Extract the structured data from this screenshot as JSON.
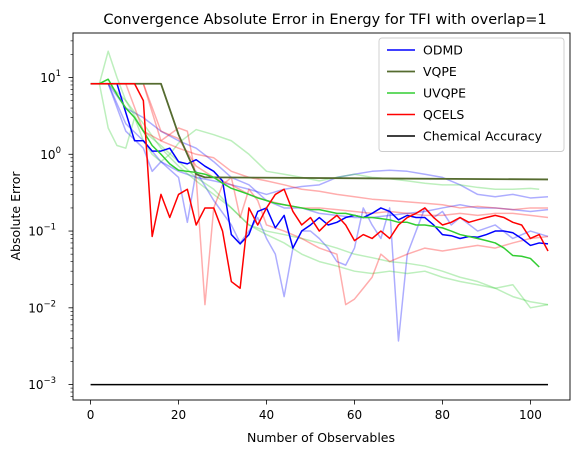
{
  "chart_data": {
    "type": "line",
    "title": "Convergence Absolute Error in Energy for TFI with overlap=1",
    "xlabel": "Number of Observables",
    "ylabel": "Absolute Error",
    "xlim": [
      -4,
      109
    ],
    "ylim": [
      0.00063,
      38
    ],
    "yscale": "log",
    "x_ticks": [
      0,
      20,
      40,
      60,
      80,
      100
    ],
    "x_tick_labels": [
      "0",
      "20",
      "40",
      "60",
      "80",
      "100"
    ],
    "y_ticks": [
      0.001,
      0.01,
      0.1,
      1,
      10
    ],
    "y_tick_labels": [
      "10",
      "10",
      "10",
      "10",
      "10"
    ],
    "y_tick_exponents": [
      "−3",
      "−2",
      "−1",
      "0",
      "1"
    ],
    "grid": false,
    "legend_position": "top-right",
    "series": [
      {
        "name": "ODMD",
        "color": "#0000ff",
        "width": 1.5,
        "alpha": 1,
        "legend": true,
        "x": [
          0,
          2,
          4,
          6,
          8,
          10,
          12,
          14,
          16,
          18,
          20,
          22,
          24,
          26,
          28,
          30,
          32,
          34,
          36,
          38,
          40,
          42,
          44,
          46,
          48,
          50,
          52,
          54,
          56,
          58,
          60,
          62,
          64,
          66,
          68,
          70,
          72,
          74,
          76,
          78,
          80,
          82,
          84,
          86,
          88,
          90,
          92,
          94,
          96,
          98,
          100,
          102,
          104
        ],
        "y": [
          8.3,
          8.3,
          8.3,
          8.3,
          3.5,
          1.5,
          1.5,
          1.1,
          1.1,
          1.2,
          0.8,
          0.75,
          0.85,
          0.7,
          0.6,
          0.45,
          0.09,
          0.068,
          0.09,
          0.18,
          0.2,
          0.11,
          0.16,
          0.06,
          0.1,
          0.12,
          0.15,
          0.12,
          0.13,
          0.15,
          0.16,
          0.15,
          0.17,
          0.2,
          0.18,
          0.14,
          0.16,
          0.15,
          0.15,
          0.12,
          0.09,
          0.087,
          0.08,
          0.085,
          0.083,
          0.09,
          0.1,
          0.1,
          0.095,
          0.08,
          0.065,
          0.07,
          0.068
        ]
      },
      {
        "name": "VQPE",
        "color": "#556b2f",
        "width": 1.8,
        "alpha": 1,
        "legend": true,
        "x": [
          0,
          4,
          8,
          12,
          16,
          20,
          24,
          26,
          28,
          104
        ],
        "y": [
          8.3,
          8.3,
          8.3,
          8.3,
          8.3,
          1.8,
          0.55,
          0.5,
          0.5,
          0.47
        ]
      },
      {
        "name": "UVQPE",
        "color": "#32cd32",
        "width": 1.5,
        "alpha": 1,
        "legend": true,
        "x": [
          0,
          2,
          4,
          6,
          8,
          10,
          12,
          14,
          16,
          18,
          20,
          22,
          24,
          26,
          28,
          30,
          32,
          34,
          36,
          38,
          40,
          42,
          44,
          46,
          48,
          50,
          52,
          54,
          56,
          58,
          60,
          62,
          64,
          66,
          68,
          70,
          72,
          74,
          76,
          78,
          80,
          82,
          84,
          86,
          88,
          90,
          92,
          94,
          96,
          98,
          100,
          102
        ],
        "y": [
          8.3,
          8.3,
          9.5,
          6,
          4,
          3,
          2,
          1.3,
          1,
          0.75,
          0.62,
          0.6,
          0.58,
          0.55,
          0.5,
          0.42,
          0.36,
          0.33,
          0.3,
          0.27,
          0.25,
          0.23,
          0.22,
          0.21,
          0.2,
          0.19,
          0.19,
          0.18,
          0.17,
          0.17,
          0.16,
          0.15,
          0.15,
          0.145,
          0.14,
          0.13,
          0.13,
          0.12,
          0.12,
          0.115,
          0.11,
          0.1,
          0.09,
          0.085,
          0.08,
          0.075,
          0.07,
          0.06,
          0.048,
          0.047,
          0.044,
          0.034
        ]
      },
      {
        "name": "QCELS",
        "color": "#ff0000",
        "width": 1.5,
        "alpha": 1,
        "legend": true,
        "x": [
          0,
          2,
          4,
          6,
          8,
          10,
          12,
          14,
          16,
          18,
          20,
          22,
          24,
          26,
          28,
          30,
          32,
          34,
          36,
          38,
          40,
          42,
          44,
          46,
          48,
          50,
          52,
          54,
          56,
          58,
          60,
          62,
          64,
          66,
          68,
          70,
          72,
          74,
          76,
          78,
          80,
          82,
          84,
          86,
          88,
          90,
          92,
          94,
          96,
          98,
          100,
          102,
          104
        ],
        "y": [
          8.3,
          8.3,
          8.3,
          8.3,
          8.3,
          8.3,
          5,
          0.085,
          0.3,
          0.15,
          0.3,
          0.35,
          0.12,
          0.2,
          0.2,
          0.1,
          0.022,
          0.018,
          0.2,
          0.12,
          0.2,
          0.3,
          0.35,
          0.18,
          0.12,
          0.15,
          0.1,
          0.13,
          0.16,
          0.12,
          0.075,
          0.09,
          0.08,
          0.1,
          0.08,
          0.12,
          0.15,
          0.17,
          0.2,
          0.15,
          0.12,
          0.13,
          0.15,
          0.13,
          0.14,
          0.15,
          0.16,
          0.15,
          0.13,
          0.12,
          0.08,
          0.09,
          0.055
        ]
      },
      {
        "name": "Chemical Accuracy",
        "color": "#000000",
        "width": 1.5,
        "alpha": 1,
        "legend": true,
        "x": [
          0,
          104
        ],
        "y": [
          0.001,
          0.001
        ]
      },
      {
        "color": "#0000ff",
        "width": 1.5,
        "alpha": 0.32,
        "legend": false,
        "x": [
          0,
          4,
          8,
          12,
          16,
          20,
          24,
          28,
          32,
          36,
          40,
          44,
          48,
          52,
          56,
          60,
          64,
          68,
          72,
          76,
          80,
          84,
          88,
          92,
          96,
          100,
          104
        ],
        "y": [
          8.3,
          8.3,
          2.5,
          1.5,
          0.8,
          0.6,
          0.5,
          0.45,
          0.4,
          0.35,
          0.3,
          0.35,
          0.38,
          0.4,
          0.5,
          0.55,
          0.6,
          0.62,
          0.6,
          0.55,
          0.5,
          0.4,
          0.3,
          0.28,
          0.3,
          0.27,
          0.28
        ]
      },
      {
        "color": "#0000ff",
        "width": 1.5,
        "alpha": 0.32,
        "legend": false,
        "x": [
          0,
          4,
          8,
          12,
          14,
          16,
          20,
          22,
          24,
          28,
          32,
          34,
          36,
          38,
          40,
          42,
          44,
          46,
          48,
          50,
          52,
          54,
          56,
          58,
          60,
          62,
          64,
          66,
          68,
          70,
          72,
          74,
          76,
          78,
          80,
          82,
          84,
          88,
          92,
          96,
          100,
          104
        ],
        "y": [
          8.3,
          8.3,
          2,
          1.2,
          0.6,
          0.8,
          0.5,
          0.13,
          0.6,
          0.25,
          0.12,
          0.07,
          0.1,
          0.15,
          0.08,
          0.05,
          0.014,
          0.06,
          0.1,
          0.1,
          0.08,
          0.06,
          0.04,
          0.036,
          0.06,
          0.2,
          0.12,
          0.08,
          0.2,
          0.0037,
          0.05,
          0.1,
          0.2,
          0.15,
          0.18,
          0.12,
          0.15,
          0.1,
          0.12,
          0.08,
          0.1,
          0.085
        ]
      },
      {
        "color": "#0000ff",
        "width": 1.5,
        "alpha": 0.32,
        "legend": false,
        "x": [
          0,
          4,
          8,
          12,
          16,
          20,
          24,
          28,
          32,
          36,
          40,
          44,
          48,
          52,
          56,
          60,
          64,
          68,
          72,
          76,
          80,
          84,
          88,
          92,
          96,
          100,
          104
        ],
        "y": [
          8.3,
          8.3,
          4,
          3,
          2,
          1.5,
          1.2,
          0.8,
          0.5,
          0.4,
          0.25,
          0.2,
          0.2,
          0.17,
          0.16,
          0.15,
          0.15,
          0.16,
          0.17,
          0.18,
          0.2,
          0.22,
          0.2,
          0.2,
          0.19,
          0.18,
          0.19
        ]
      },
      {
        "color": "#32cd32",
        "width": 1.5,
        "alpha": 0.32,
        "legend": false,
        "x": [
          0,
          2,
          4,
          6,
          8,
          10,
          12,
          14,
          16,
          18,
          20,
          24,
          28,
          32,
          36,
          40,
          44,
          48,
          52,
          56,
          60,
          64,
          68,
          72,
          76,
          80,
          84,
          88,
          92,
          96,
          100,
          102
        ],
        "y": [
          8.3,
          8.3,
          2.2,
          1.3,
          1.2,
          3,
          1.5,
          1,
          0.8,
          1,
          1.4,
          2.1,
          1.8,
          1.5,
          1,
          0.6,
          0.55,
          0.5,
          0.45,
          0.5,
          0.55,
          0.5,
          0.48,
          0.45,
          0.42,
          0.4,
          0.4,
          0.37,
          0.35,
          0.35,
          0.36,
          0.35
        ]
      },
      {
        "color": "#32cd32",
        "width": 1.5,
        "alpha": 0.32,
        "legend": false,
        "x": [
          0,
          2,
          4,
          6,
          8,
          12,
          16,
          20,
          24,
          28,
          32,
          36,
          40,
          44,
          48,
          52,
          56,
          60,
          64,
          68,
          72,
          76,
          80,
          84,
          88,
          92,
          96,
          100,
          104
        ],
        "y": [
          8.3,
          8.3,
          22,
          10,
          5,
          2.5,
          1.2,
          0.7,
          0.45,
          0.3,
          0.2,
          0.12,
          0.09,
          0.07,
          0.05,
          0.04,
          0.035,
          0.03,
          0.028,
          0.03,
          0.028,
          0.03,
          0.025,
          0.022,
          0.02,
          0.018,
          0.02,
          0.01,
          0.011
        ]
      },
      {
        "color": "#32cd32",
        "width": 1.5,
        "alpha": 0.32,
        "legend": false,
        "x": [
          0,
          4,
          8,
          12,
          16,
          20,
          24,
          28,
          32,
          36,
          40,
          44,
          48,
          52,
          56,
          60,
          64,
          68,
          72,
          76,
          80,
          84,
          88,
          92,
          96,
          100,
          104
        ],
        "y": [
          8.3,
          8.3,
          5,
          2,
          1.3,
          0.8,
          0.5,
          0.35,
          0.2,
          0.12,
          0.1,
          0.09,
          0.08,
          0.07,
          0.06,
          0.05,
          0.045,
          0.04,
          0.038,
          0.035,
          0.03,
          0.025,
          0.022,
          0.018,
          0.014,
          0.012,
          0.011
        ]
      },
      {
        "color": "#ff0000",
        "width": 1.5,
        "alpha": 0.32,
        "legend": false,
        "x": [
          0,
          4,
          8,
          12,
          16,
          20,
          22,
          24,
          26,
          28,
          30,
          32,
          34,
          36,
          38,
          40,
          44,
          48,
          52,
          56,
          58,
          60,
          62,
          64,
          66,
          68,
          72,
          76,
          80,
          84,
          88,
          92,
          96,
          100,
          104
        ],
        "y": [
          8.3,
          8.3,
          8.3,
          8.3,
          1.5,
          2.2,
          2,
          0.5,
          0.011,
          0.2,
          0.4,
          0.5,
          0.15,
          0.35,
          0.25,
          0.12,
          0.1,
          0.08,
          0.06,
          0.05,
          0.011,
          0.013,
          0.018,
          0.025,
          0.05,
          0.04,
          0.05,
          0.06,
          0.055,
          0.06,
          0.065,
          0.06,
          0.07,
          0.08,
          0.085
        ]
      },
      {
        "color": "#ff0000",
        "width": 1.5,
        "alpha": 0.32,
        "legend": false,
        "x": [
          0,
          4,
          8,
          12,
          16,
          20,
          24,
          28,
          32,
          36,
          40,
          44,
          48,
          52,
          56,
          60,
          64,
          68,
          72,
          76,
          80,
          84,
          88,
          92,
          96,
          100,
          104
        ],
        "y": [
          8.3,
          8.3,
          8.3,
          2,
          1.5,
          1.2,
          1,
          0.9,
          0.6,
          0.5,
          0.45,
          0.4,
          0.35,
          0.33,
          0.3,
          0.28,
          0.26,
          0.25,
          0.24,
          0.23,
          0.22,
          0.2,
          0.21,
          0.2,
          0.19,
          0.2,
          0.2
        ]
      },
      {
        "color": "#ff0000",
        "width": 1.5,
        "alpha": 0.32,
        "legend": false,
        "x": [
          0,
          4,
          8,
          12,
          16,
          20,
          24,
          28,
          32,
          36,
          40,
          44,
          48,
          52,
          56,
          60,
          64,
          68,
          72,
          76,
          80,
          84,
          88,
          92,
          96,
          100,
          104
        ],
        "y": [
          8.3,
          8.3,
          8.3,
          8.3,
          2,
          1.6,
          0.7,
          0.5,
          0.4,
          0.3,
          0.25,
          0.22,
          0.2,
          0.2,
          0.19,
          0.18,
          0.17,
          0.18,
          0.17,
          0.16,
          0.16,
          0.17,
          0.16,
          0.17,
          0.17,
          0.16,
          0.15
        ]
      }
    ]
  }
}
